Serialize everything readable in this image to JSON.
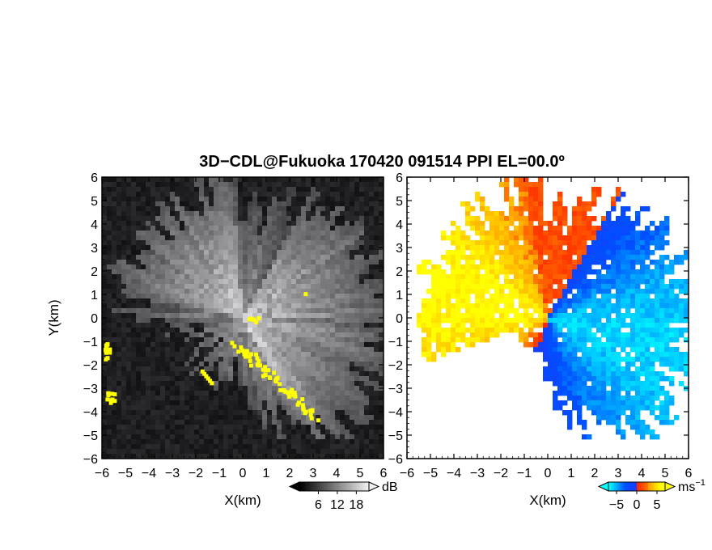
{
  "title": "3D−CDL@Fukuoka 170420 091514 PPI EL=00.0º",
  "chart_data": [
    {
      "type": "heatmap",
      "panel": "reflectivity",
      "xlabel": "X(km)",
      "ylabel": "Y(km)",
      "xlim": [
        -6,
        6
      ],
      "ylim": [
        -6,
        6
      ],
      "xticks": [
        "−6",
        "−5",
        "−4",
        "−3",
        "−2",
        "−1",
        "0",
        "1",
        "2",
        "3",
        "4",
        "5",
        "6"
      ],
      "yticks": [
        "6",
        "5",
        "4",
        "3",
        "2",
        "1",
        "0",
        "−1",
        "−2",
        "−3",
        "−4",
        "−5",
        "−6"
      ],
      "colorbar": {
        "unit": "dB",
        "ticks": [
          "6",
          "12",
          "18"
        ],
        "range": [
          0,
          22
        ]
      },
      "colormap": [
        "#000000",
        "#ffffff"
      ],
      "flag_color": "#ffff00",
      "grid": false
    },
    {
      "type": "heatmap",
      "panel": "doppler velocity",
      "xlabel": "X(km)",
      "ylabel": "",
      "xlim": [
        -6,
        6
      ],
      "ylim": [
        -6,
        6
      ],
      "xticks": [
        "−6",
        "−5",
        "−4",
        "−3",
        "−2",
        "−1",
        "0",
        "1",
        "2",
        "3",
        "4",
        "5",
        "6"
      ],
      "yticks": [
        "6",
        "5",
        "4",
        "3",
        "2",
        "1",
        "0",
        "−1",
        "−2",
        "−3",
        "−4",
        "−5",
        "−6"
      ],
      "colorbar": {
        "unit": "ms",
        "unit_exp": "−1",
        "ticks": [
          "−5",
          "0",
          "5"
        ],
        "range": [
          -7,
          7
        ]
      },
      "colormap": [
        "#00ffff",
        "#0050ff",
        "#ff2000",
        "#ffff00"
      ],
      "grid": false
    }
  ]
}
